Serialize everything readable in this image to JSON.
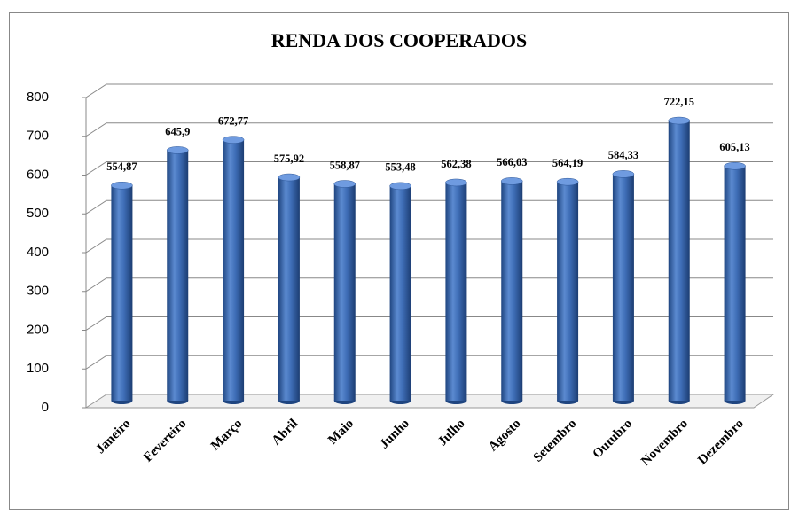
{
  "chart_data": {
    "type": "bar",
    "title": "RENDA DOS COOPERADOS",
    "categories": [
      "Janeiro",
      "Fevereiro",
      "Março",
      "Abril",
      "Maio",
      "Junho",
      "Julho",
      "Agosto",
      "Setembro",
      "Outubro",
      "Novembro",
      "Dezembro"
    ],
    "values": [
      554.87,
      645.9,
      672.77,
      575.92,
      558.87,
      553.48,
      562.38,
      566.03,
      564.19,
      584.33,
      722.15,
      605.13
    ],
    "value_labels": [
      "554,87",
      "645,9",
      "672,77",
      "575,92",
      "558,87",
      "553,48",
      "562,38",
      "566,03",
      "564,19",
      "584,33",
      "722,15",
      "605,13"
    ],
    "color": "#3a6ab3",
    "ylim": [
      0,
      800
    ],
    "yticks": [
      0,
      100,
      200,
      300,
      400,
      500,
      600,
      700,
      800
    ],
    "grid": true
  }
}
